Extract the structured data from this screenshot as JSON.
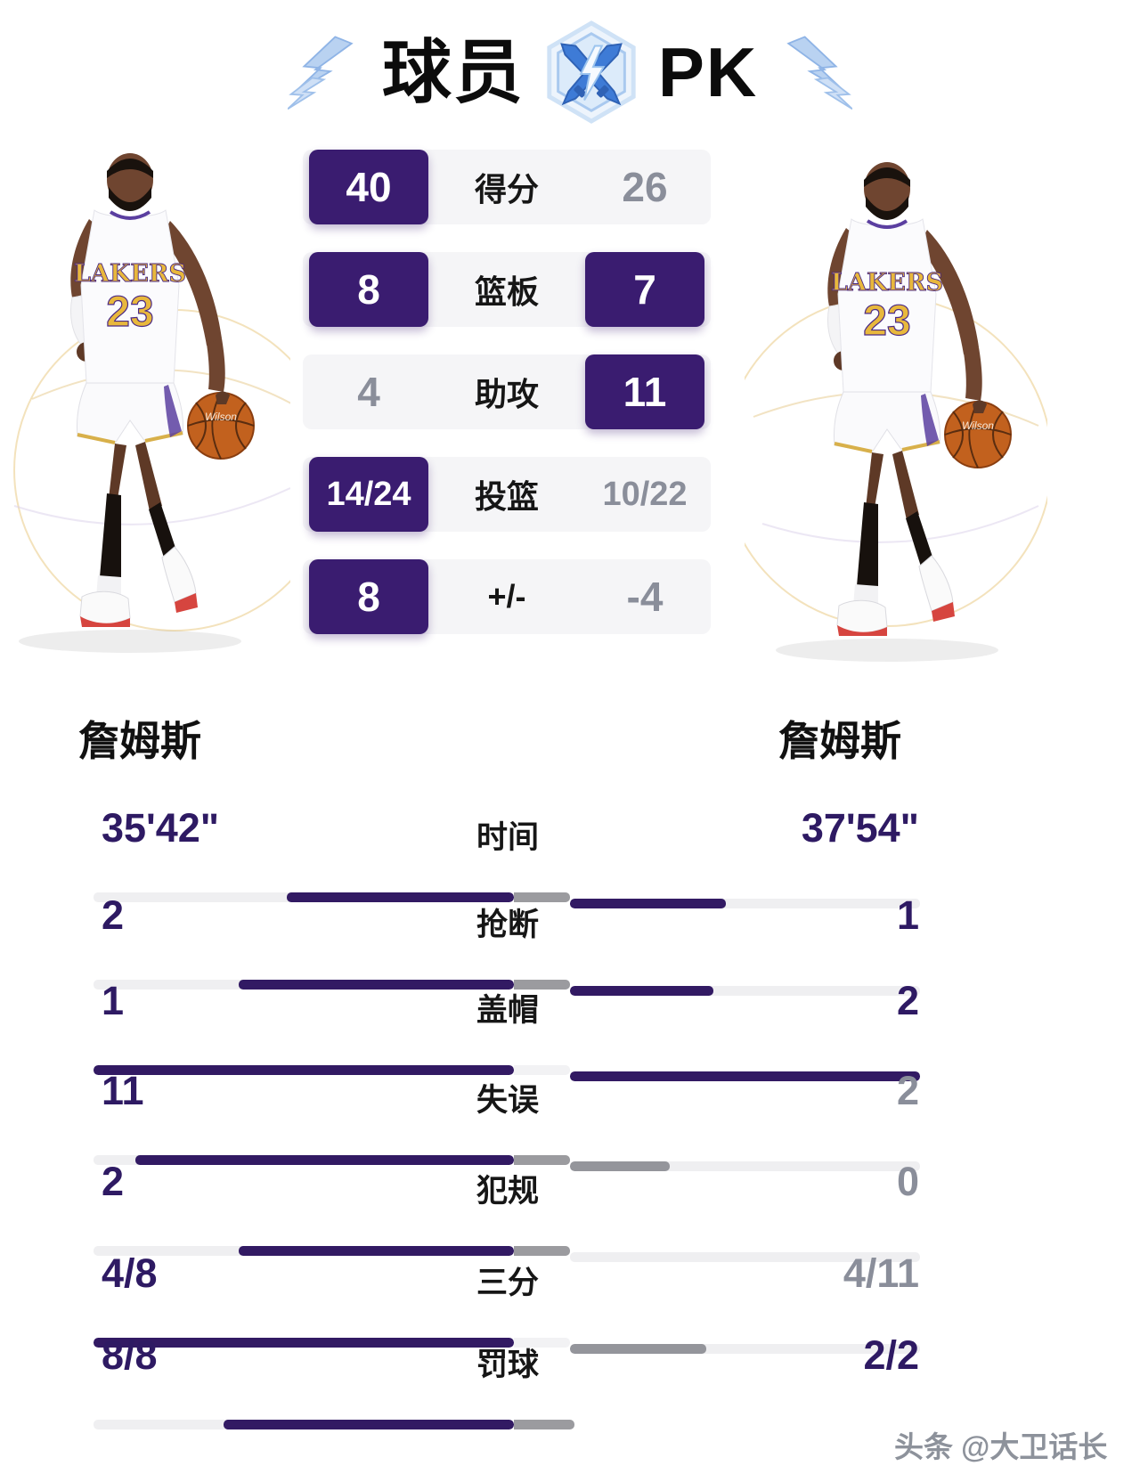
{
  "title": {
    "part1": "球员",
    "part2": "PK"
  },
  "players": {
    "left": {
      "name": "詹姆斯",
      "jersey_number": "23",
      "jersey_team": "LAKERS",
      "ball_brand": "Wilson"
    },
    "right": {
      "name": "詹姆斯",
      "jersey_number": "23",
      "jersey_team": "LAKERS",
      "ball_brand": "Wilson"
    }
  },
  "top_stats": {
    "rows": [
      {
        "label": "得分",
        "left": "40",
        "right": "26"
      },
      {
        "label": "篮板",
        "left": "8",
        "right": "7"
      },
      {
        "label": "助攻",
        "left": "4",
        "right": "11"
      },
      {
        "label": "投篮",
        "left": "14/24",
        "right": "10/22"
      },
      {
        "label": "+/-",
        "left": "8",
        "right": "-4"
      }
    ]
  },
  "bottom_stats": {
    "rows": [
      {
        "label": "时间",
        "left": "35'42\"",
        "right": "37'54\"",
        "bar": {
          "left_fill": 0.54,
          "right_fill": 0.445
        }
      },
      {
        "label": "抢断",
        "left": "2",
        "right": "1",
        "bar": {
          "left_fill": 0.655,
          "right_fill": 0.41
        }
      },
      {
        "label": "盖帽",
        "left": "1",
        "right": "2",
        "bar": {
          "left_fill": 1.0,
          "right_fill": 1.0
        }
      },
      {
        "label": "失误",
        "left": "11",
        "right": "2",
        "bar": {
          "left_fill": 0.9,
          "right_fill": 0.285
        }
      },
      {
        "label": "犯规",
        "left": "2",
        "right": "0",
        "bar": {
          "left_fill": 0.655,
          "right_fill": 0
        }
      },
      {
        "label": "三分",
        "left": "4/8",
        "right": "4/11",
        "bar": {
          "left_fill": 1.0,
          "right_fill": 0.39
        }
      },
      {
        "label": "罚球",
        "left": "8/8",
        "right": "2/2",
        "bar": {
          "left_fill": 0.69,
          "right_fill": 0
        }
      }
    ]
  },
  "watermark": {
    "text": "头条 @大卫话长"
  },
  "colors": {
    "purple_box": "#3a1c70",
    "purple_bar": "#321a63",
    "purple_text": "#2e1a63",
    "gray_text": "#8a8e9a",
    "bar_track": "#efeff1",
    "bar_gray": "#94959b",
    "cap_gray": "#9b9b9f",
    "lightning_blue": "#b3cfF2",
    "badge_blue": "#3e7bd6"
  }
}
